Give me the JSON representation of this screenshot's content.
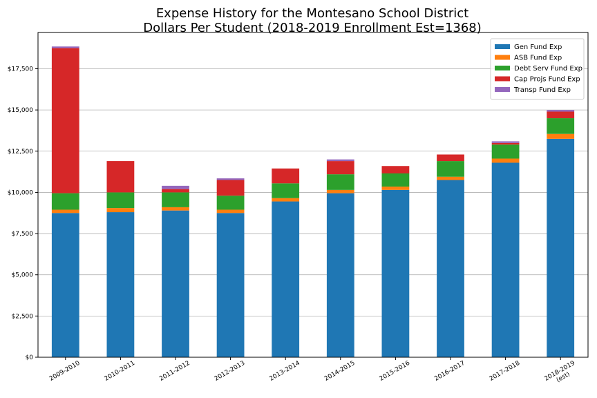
{
  "chart_data": {
    "type": "bar",
    "stacked": true,
    "title": "Expense History for the Montesano School District",
    "subtitle": "Dollars Per Student (2018-2019 Enrollment Est=1368)",
    "xlabel": "",
    "ylabel": "",
    "categories": [
      "2009-2010",
      "2010-2011",
      "2011-2012",
      "2012-2013",
      "2013-2014",
      "2014-2015",
      "2015-2016",
      "2016-2017",
      "2017-2018",
      "2018-2019"
    ],
    "category_sublabels": [
      "",
      "",
      "",
      "",
      "",
      "",
      "",
      "",
      "",
      "(est)"
    ],
    "yticks": [
      "$0",
      "$2,500",
      "$5,000",
      "$7,500",
      "$10,000",
      "$12,500",
      "$15,000",
      "$17,500"
    ],
    "ylim": [
      0,
      19700
    ],
    "grid": "horizontal",
    "legend_position": "top-right",
    "series": [
      {
        "name": "Gen Fund Exp",
        "color": "#1f77b4",
        "values": [
          8750,
          8800,
          8900,
          8750,
          9450,
          9950,
          10150,
          10750,
          11800,
          13250
        ]
      },
      {
        "name": "ASB Fund Exp",
        "color": "#ff7f0e",
        "values": [
          200,
          250,
          200,
          200,
          200,
          200,
          200,
          200,
          250,
          300
        ]
      },
      {
        "name": "Debt Serv Fund Exp",
        "color": "#2ca02c",
        "values": [
          1000,
          950,
          900,
          850,
          900,
          950,
          800,
          950,
          850,
          950
        ]
      },
      {
        "name": "Cap Projs Fund Exp",
        "color": "#d62728",
        "values": [
          8800,
          1900,
          200,
          950,
          900,
          800,
          450,
          400,
          100,
          400
        ]
      },
      {
        "name": "Transp Fund Exp",
        "color": "#9467bd",
        "values": [
          100,
          0,
          200,
          100,
          0,
          100,
          0,
          0,
          100,
          100
        ]
      }
    ]
  }
}
